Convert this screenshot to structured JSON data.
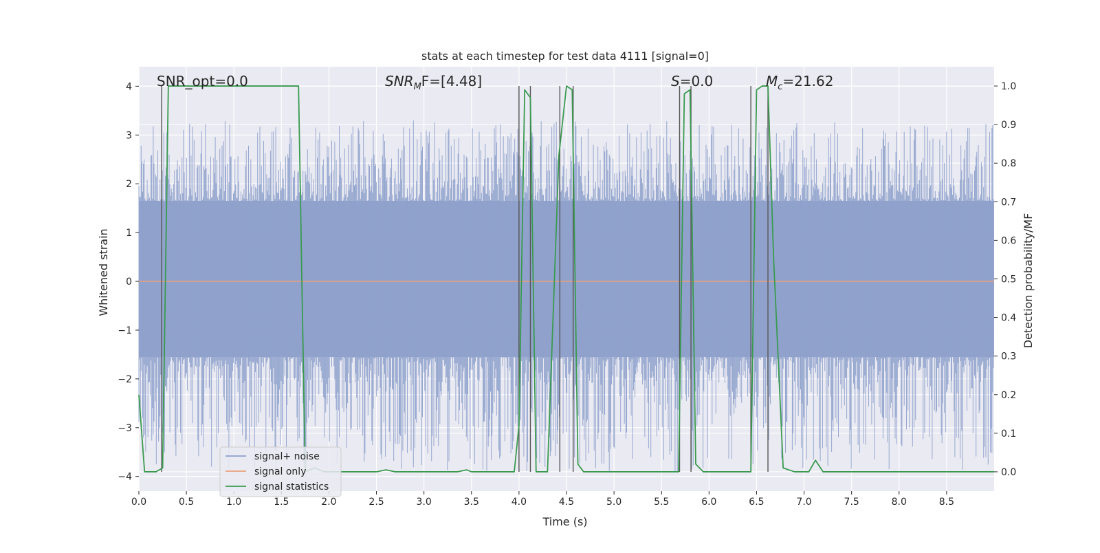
{
  "chart_data": {
    "type": "line",
    "title": "stats at each timestep for test data 4111 [signal=0]",
    "xlabel": "Time (s)",
    "ylabel": "Whitened strain",
    "y2label": "Detection probability/MF",
    "xlim": [
      0.0,
      9.0
    ],
    "ylim": [
      -4.3,
      4.4
    ],
    "y2lim": [
      -0.05,
      1.05
    ],
    "grid": true,
    "legend_position": "lower-left",
    "x_ticks": [
      0.0,
      0.5,
      1.0,
      1.5,
      2.0,
      2.5,
      3.0,
      3.5,
      4.0,
      4.5,
      5.0,
      5.5,
      6.0,
      6.5,
      7.0,
      7.5,
      8.0,
      8.5
    ],
    "x_tick_labels": [
      "0.0",
      "0.5",
      "1.0",
      "1.5",
      "2.0",
      "2.5",
      "3.0",
      "3.5",
      "4.0",
      "4.5",
      "5.0",
      "5.5",
      "6.0",
      "6.5",
      "7.0",
      "7.5",
      "8.0",
      "8.5"
    ],
    "y_ticks": [
      -4,
      -3,
      -2,
      -1,
      0,
      1,
      2,
      3,
      4
    ],
    "y_tick_labels": [
      "−4",
      "−3",
      "−2",
      "−1",
      "0",
      "1",
      "2",
      "3",
      "4"
    ],
    "y2_ticks": [
      0.0,
      0.1,
      0.2,
      0.3,
      0.4,
      0.5,
      0.6,
      0.7,
      0.8,
      0.9,
      1.0
    ],
    "y2_tick_labels": [
      "0.0",
      "0.1",
      "0.2",
      "0.3",
      "0.4",
      "0.5",
      "0.6",
      "0.7",
      "0.8",
      "0.9",
      "1.0"
    ],
    "annotations": {
      "snr_opt": "SNR_opt=0.0",
      "snr_mf_sym": "SNR",
      "snr_mf_sub": "M",
      "snr_mf_tail": "F=[4.48]",
      "s_sym": "S",
      "s_val": "=0.0",
      "mc_sym": "M",
      "mc_sub": "c",
      "mc_val": "=21.62"
    },
    "series": [
      {
        "name": "signal+ noise",
        "color": "#8da0cb",
        "axis": "left",
        "band": {
          "core_low": -1.55,
          "core_high": 1.65,
          "peak_min": -3.9,
          "peak_max": 3.3
        }
      },
      {
        "name": "signal only",
        "color": "#e8a07c",
        "axis": "left",
        "x": [
          0.0,
          9.0
        ],
        "values": [
          0.0,
          0.0
        ]
      },
      {
        "name": "signal statistics",
        "color": "#3a9a4f",
        "axis": "right",
        "x": [
          0.0,
          0.06,
          0.18,
          0.25,
          0.31,
          0.5,
          1.0,
          1.5,
          1.68,
          1.75,
          1.85,
          1.95,
          2.1,
          2.5,
          2.6,
          2.7,
          3.0,
          3.35,
          3.45,
          3.5,
          3.7,
          3.95,
          4.0,
          4.06,
          4.12,
          4.18,
          4.3,
          4.42,
          4.5,
          4.56,
          4.62,
          4.68,
          4.8,
          5.0,
          5.4,
          5.68,
          5.74,
          5.8,
          5.86,
          5.94,
          6.2,
          6.44,
          6.5,
          6.56,
          6.62,
          6.68,
          6.78,
          6.9,
          7.05,
          7.12,
          7.2,
          7.5,
          8.0,
          8.5,
          9.0
        ],
        "values": [
          0.2,
          0.0,
          0.0,
          0.01,
          1.0,
          1.0,
          1.0,
          1.0,
          1.0,
          0.0,
          0.01,
          0.0,
          0.0,
          0.0,
          0.005,
          0.0,
          0.0,
          0.0,
          0.005,
          0.0,
          0.0,
          0.0,
          0.12,
          0.99,
          0.97,
          0.0,
          0.0,
          0.82,
          1.0,
          0.99,
          0.02,
          0.0,
          0.0,
          0.0,
          0.0,
          0.0,
          0.98,
          0.99,
          0.02,
          0.0,
          0.0,
          0.0,
          0.99,
          1.0,
          1.0,
          0.55,
          0.01,
          0.0,
          0.0,
          0.03,
          0.0,
          0.0,
          0.0,
          0.0,
          0.0
        ]
      }
    ],
    "vertical_markers": [
      0.24,
      4.0,
      4.12,
      4.43,
      4.57,
      5.69,
      5.81,
      6.44,
      6.62
    ]
  }
}
